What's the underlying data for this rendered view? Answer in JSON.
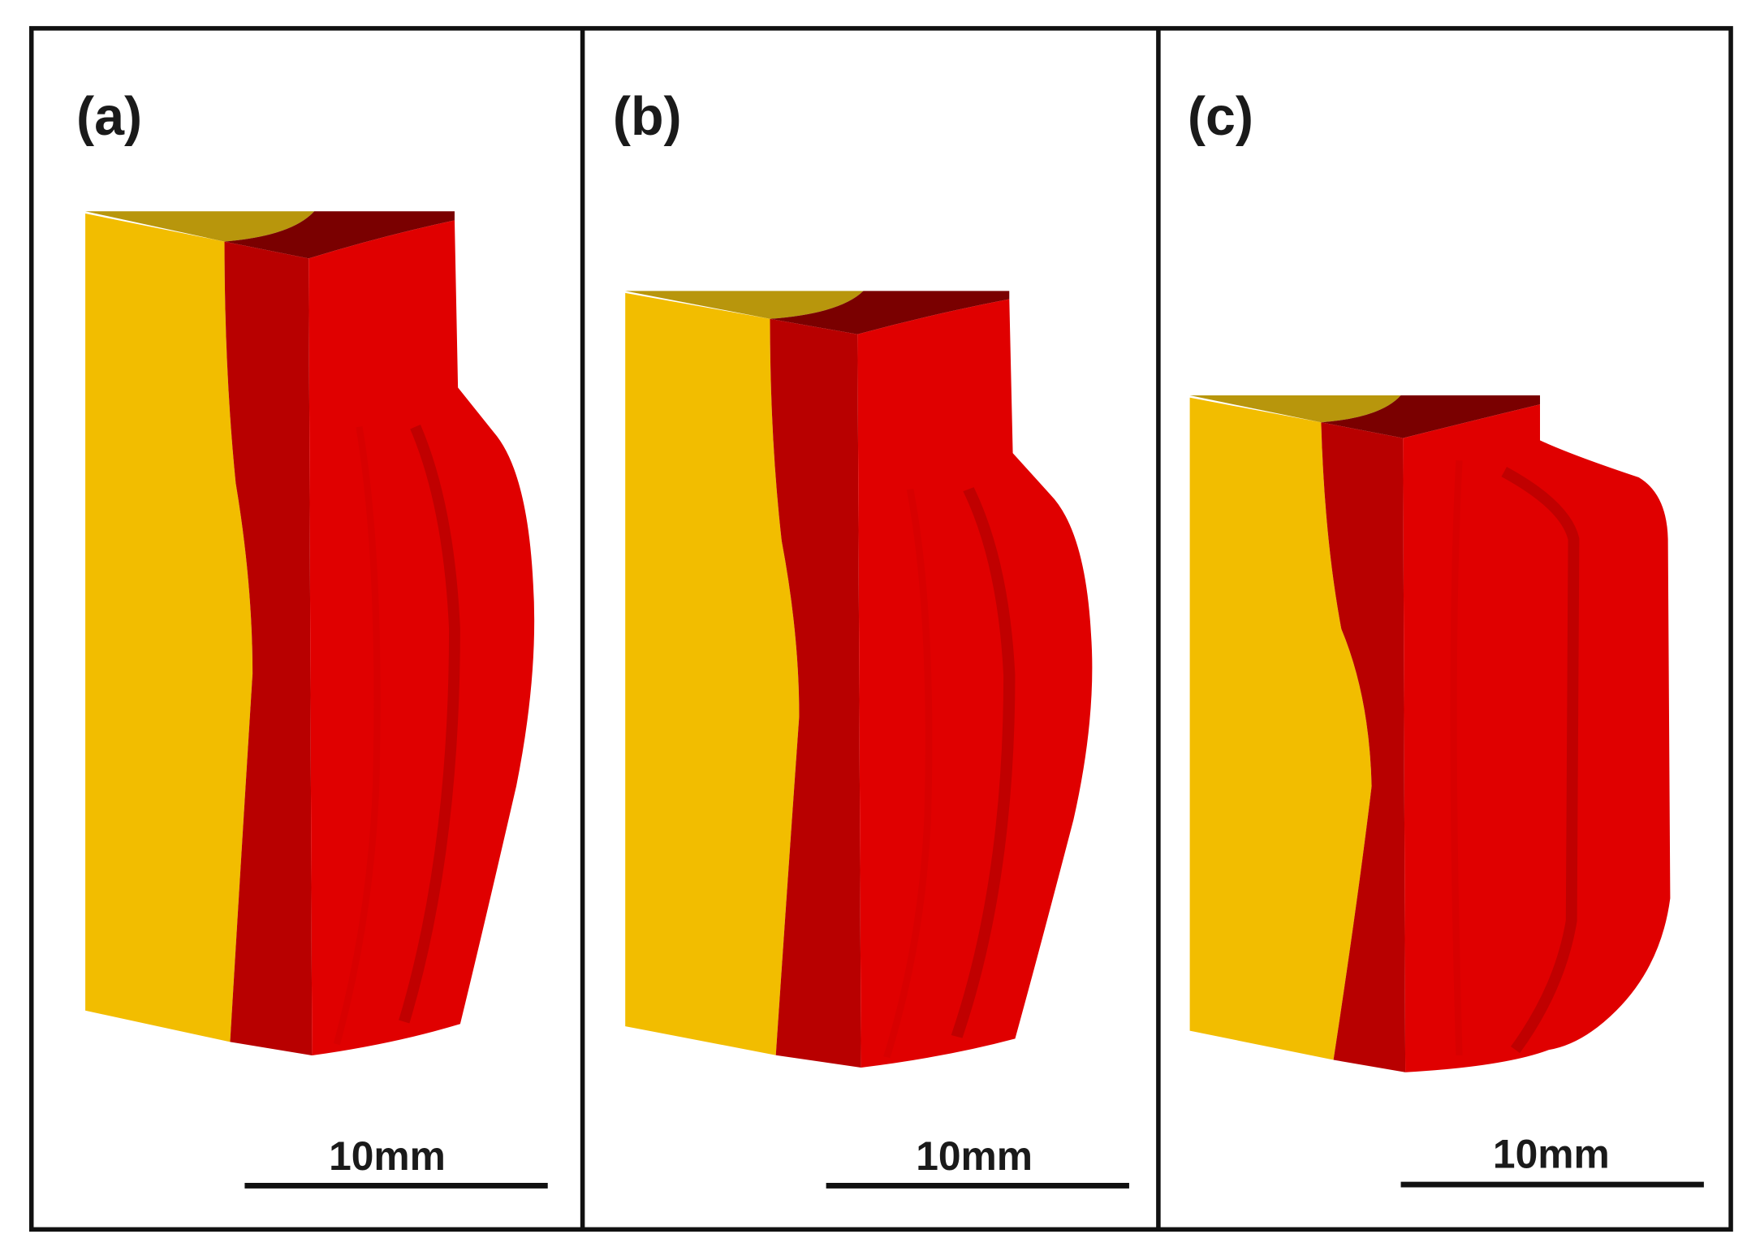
{
  "panels": [
    {
      "label": "(a)",
      "scale_bar": "10mm"
    },
    {
      "label": "(b)",
      "scale_bar": "10mm"
    },
    {
      "label": "(c)",
      "scale_bar": "10mm"
    }
  ]
}
